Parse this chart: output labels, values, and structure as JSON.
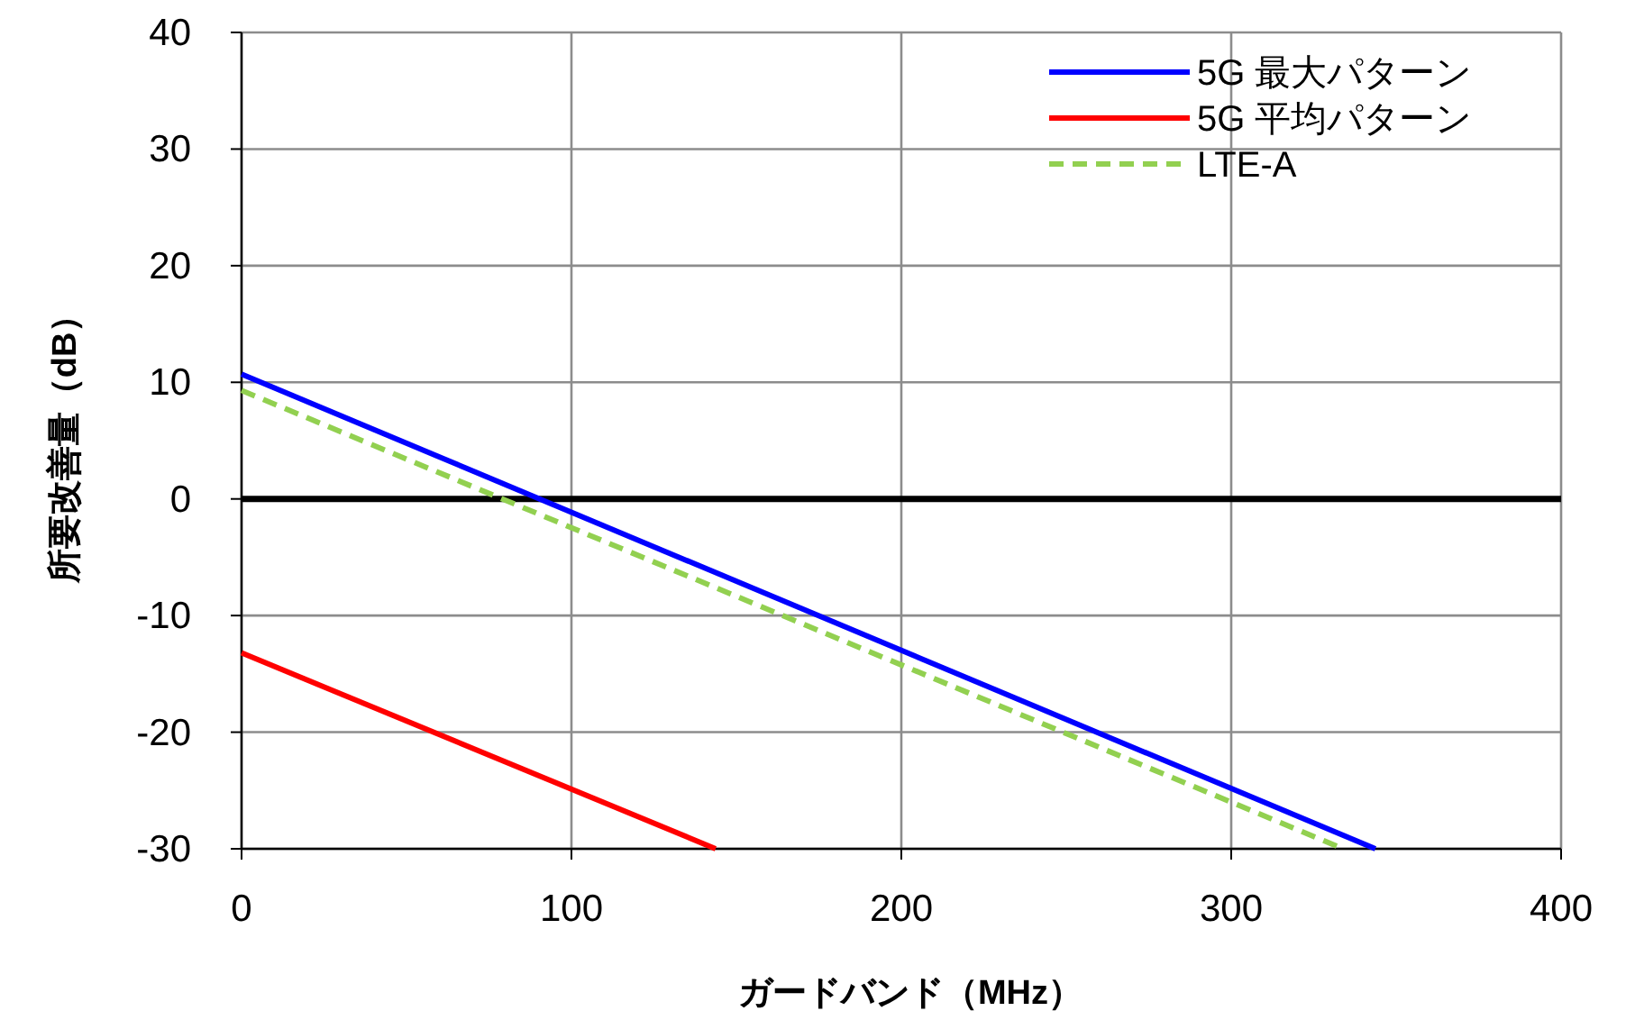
{
  "chart_data": {
    "type": "line",
    "xlabel": "ガードバンド（MHz）",
    "ylabel": "所要改善量（dB）",
    "xlim": [
      0,
      400
    ],
    "ylim": [
      -30,
      40
    ],
    "xticks": [
      0,
      100,
      200,
      300,
      400
    ],
    "yticks": [
      -30,
      -20,
      -10,
      0,
      10,
      20,
      30,
      40
    ],
    "grid": true,
    "legend": "top right",
    "ref_lines": [
      {
        "axis": "y",
        "value": 0,
        "color": "#000000"
      }
    ],
    "series": [
      {
        "name": "5G 最大パターン",
        "color": "#0000ff",
        "line_style": "solid",
        "x": [
          0,
          343.7
        ],
        "values": [
          10.7,
          -30
        ]
      },
      {
        "name": "5G 平均パターン",
        "color": "#ff0000",
        "line_style": "solid",
        "x": [
          0,
          143.7
        ],
        "values": [
          -13.2,
          -30
        ]
      },
      {
        "name": "LTE-A",
        "color": "#92d050",
        "line_style": "dashed",
        "x": [
          0,
          334
        ],
        "values": [
          9.3,
          -30
        ]
      }
    ]
  }
}
